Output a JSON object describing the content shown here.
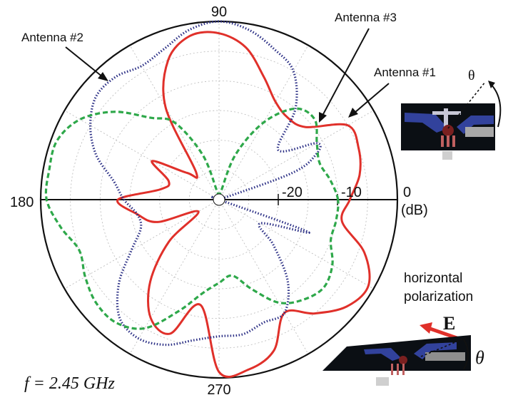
{
  "chart_data": {
    "type": "polar-line",
    "angle_labels": {
      "a90": "90",
      "a180": "180",
      "a270": "270",
      "a0": "0"
    },
    "radial_unit": "(dB)",
    "radial_range_db": [
      -30,
      0
    ],
    "radial_ticks": [
      {
        "value": -20,
        "label": "-20"
      },
      {
        "value": -10,
        "label": "-10"
      }
    ],
    "grid": true,
    "annotation": "f = 2.45 GHz",
    "series": [
      {
        "name": "Antenna #1",
        "color": "#e0302a",
        "style": "solid",
        "points": [
          [
            0,
            -8
          ],
          [
            10,
            -6
          ],
          [
            20,
            -5
          ],
          [
            30,
            -5
          ],
          [
            40,
            -11
          ],
          [
            50,
            -12
          ],
          [
            60,
            -11
          ],
          [
            70,
            -8
          ],
          [
            80,
            -4
          ],
          [
            90,
            -2
          ],
          [
            100,
            -2
          ],
          [
            110,
            -5
          ],
          [
            120,
            -12
          ],
          [
            130,
            -24
          ],
          [
            140,
            -23
          ],
          [
            150,
            -17
          ],
          [
            160,
            -21
          ],
          [
            170,
            -20
          ],
          [
            180,
            -13
          ],
          [
            190,
            -16
          ],
          [
            200,
            -19
          ],
          [
            210,
            -26
          ],
          [
            220,
            -19
          ],
          [
            230,
            -12
          ],
          [
            240,
            -7
          ],
          [
            250,
            -6
          ],
          [
            260,
            -12
          ],
          [
            270,
            -1
          ],
          [
            280,
            -1
          ],
          [
            290,
            -3
          ],
          [
            300,
            -8
          ],
          [
            310,
            -5
          ],
          [
            320,
            -2
          ],
          [
            330,
            -1
          ],
          [
            340,
            -4
          ],
          [
            350,
            -9
          ]
        ]
      },
      {
        "name": "Antenna #2",
        "color": "#2b2f85",
        "style": "dotted",
        "points": [
          [
            0,
            -30
          ],
          [
            15,
            -30
          ],
          [
            20,
            -17
          ],
          [
            25,
            -12
          ],
          [
            30,
            -11
          ],
          [
            40,
            -17
          ],
          [
            50,
            -10
          ],
          [
            60,
            -5
          ],
          [
            70,
            -3
          ],
          [
            80,
            -1
          ],
          [
            90,
            0
          ],
          [
            100,
            -1
          ],
          [
            110,
            -3
          ],
          [
            120,
            -4
          ],
          [
            130,
            -3
          ],
          [
            140,
            -3
          ],
          [
            150,
            -5
          ],
          [
            160,
            -8
          ],
          [
            170,
            -12
          ],
          [
            180,
            -14
          ],
          [
            190,
            -16
          ],
          [
            200,
            -16
          ],
          [
            210,
            -13
          ],
          [
            220,
            -8
          ],
          [
            230,
            -4
          ],
          [
            240,
            -3
          ],
          [
            250,
            -4
          ],
          [
            260,
            -6
          ],
          [
            270,
            -7
          ],
          [
            280,
            -7
          ],
          [
            290,
            -8
          ],
          [
            300,
            -8
          ],
          [
            310,
            -12
          ],
          [
            320,
            -18
          ],
          [
            330,
            -22
          ],
          [
            340,
            -14
          ],
          [
            345,
            -30
          ],
          [
            355,
            -30
          ]
        ]
      },
      {
        "name": "Antenna #3",
        "color": "#2ea84a",
        "style": "dashed",
        "points": [
          [
            0,
            -10
          ],
          [
            10,
            -11
          ],
          [
            20,
            -12
          ],
          [
            30,
            -11
          ],
          [
            40,
            -9
          ],
          [
            50,
            -10
          ],
          [
            60,
            -15
          ],
          [
            70,
            -22
          ],
          [
            80,
            -29
          ],
          [
            100,
            -29
          ],
          [
            110,
            -22
          ],
          [
            120,
            -15
          ],
          [
            130,
            -12
          ],
          [
            140,
            -7
          ],
          [
            150,
            -3
          ],
          [
            160,
            -1
          ],
          [
            170,
            -1
          ],
          [
            180,
            -1
          ],
          [
            190,
            -3
          ],
          [
            200,
            -5
          ],
          [
            210,
            -4
          ],
          [
            220,
            -3
          ],
          [
            230,
            -3
          ],
          [
            240,
            -5
          ],
          [
            250,
            -10
          ],
          [
            260,
            -14
          ],
          [
            270,
            -16
          ],
          [
            280,
            -17
          ],
          [
            290,
            -14
          ],
          [
            300,
            -10
          ],
          [
            310,
            -8
          ],
          [
            320,
            -7
          ],
          [
            330,
            -8
          ],
          [
            340,
            -10
          ],
          [
            350,
            -10
          ]
        ]
      }
    ]
  },
  "insets": {
    "top_theta": "θ",
    "polarization_label_1": "horizontal",
    "polarization_label_2": "polarization",
    "field_label": "E",
    "bottom_theta": "θ"
  }
}
